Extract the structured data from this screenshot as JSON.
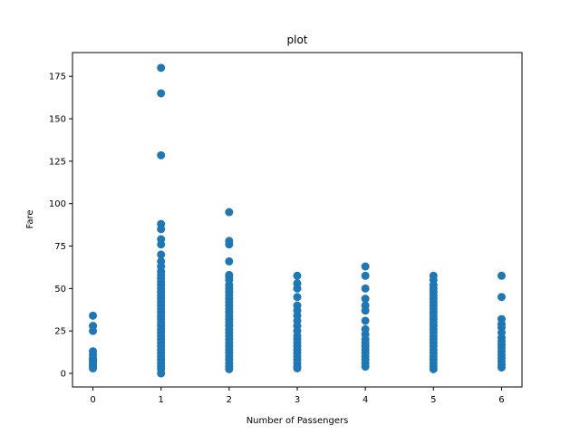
{
  "chart_data": {
    "type": "scatter",
    "title": "plot",
    "xlabel": "Number of Passengers",
    "ylabel": "Fare",
    "xlim": [
      -0.3,
      6.3
    ],
    "ylim": [
      -8,
      189
    ],
    "xticks": [
      0,
      1,
      2,
      3,
      4,
      5,
      6
    ],
    "yticks": [
      0,
      25,
      50,
      75,
      100,
      125,
      150,
      175
    ],
    "grid": false,
    "marker_color": "#1f77b4",
    "series": [
      {
        "points": [
          {
            "x": 0,
            "y": 34
          },
          {
            "x": 0,
            "y": 28
          },
          {
            "x": 0,
            "y": 25
          },
          {
            "x": 0,
            "y": 13
          },
          {
            "x": 0,
            "y": 11
          },
          {
            "x": 0,
            "y": 9
          },
          {
            "x": 0,
            "y": 8
          },
          {
            "x": 0,
            "y": 7
          },
          {
            "x": 0,
            "y": 6
          },
          {
            "x": 0,
            "y": 5
          },
          {
            "x": 0,
            "y": 4
          },
          {
            "x": 0,
            "y": 3
          },
          {
            "x": 1,
            "y": 180
          },
          {
            "x": 1,
            "y": 165
          },
          {
            "x": 1,
            "y": 128.5
          },
          {
            "x": 1,
            "y": 88
          },
          {
            "x": 1,
            "y": 85
          },
          {
            "x": 1,
            "y": 79
          },
          {
            "x": 1,
            "y": 76
          },
          {
            "x": 1,
            "y": 70
          },
          {
            "x": 1,
            "y": 66
          },
          {
            "x": 1,
            "y": 63
          },
          {
            "x": 1,
            "y": 60
          },
          {
            "x": 1,
            "y": 58
          },
          {
            "x": 1,
            "y": 56
          },
          {
            "x": 1,
            "y": 54
          },
          {
            "x": 1,
            "y": 52
          },
          {
            "x": 1,
            "y": 50
          },
          {
            "x": 1,
            "y": 48
          },
          {
            "x": 1,
            "y": 46
          },
          {
            "x": 1,
            "y": 44
          },
          {
            "x": 1,
            "y": 42
          },
          {
            "x": 1,
            "y": 40
          },
          {
            "x": 1,
            "y": 38
          },
          {
            "x": 1,
            "y": 36
          },
          {
            "x": 1,
            "y": 34
          },
          {
            "x": 1,
            "y": 32
          },
          {
            "x": 1,
            "y": 30
          },
          {
            "x": 1,
            "y": 28
          },
          {
            "x": 1,
            "y": 26
          },
          {
            "x": 1,
            "y": 24
          },
          {
            "x": 1,
            "y": 22
          },
          {
            "x": 1,
            "y": 20
          },
          {
            "x": 1,
            "y": 18
          },
          {
            "x": 1,
            "y": 16
          },
          {
            "x": 1,
            "y": 14
          },
          {
            "x": 1,
            "y": 12
          },
          {
            "x": 1,
            "y": 10
          },
          {
            "x": 1,
            "y": 8
          },
          {
            "x": 1,
            "y": 6
          },
          {
            "x": 1,
            "y": 4
          },
          {
            "x": 1,
            "y": 2.5
          },
          {
            "x": 1,
            "y": 0
          },
          {
            "x": 2,
            "y": 95
          },
          {
            "x": 2,
            "y": 78
          },
          {
            "x": 2,
            "y": 76
          },
          {
            "x": 2,
            "y": 66
          },
          {
            "x": 2,
            "y": 58
          },
          {
            "x": 2,
            "y": 57
          },
          {
            "x": 2,
            "y": 55
          },
          {
            "x": 2,
            "y": 52
          },
          {
            "x": 2,
            "y": 50
          },
          {
            "x": 2,
            "y": 48
          },
          {
            "x": 2,
            "y": 46
          },
          {
            "x": 2,
            "y": 44
          },
          {
            "x": 2,
            "y": 42
          },
          {
            "x": 2,
            "y": 40
          },
          {
            "x": 2,
            "y": 38
          },
          {
            "x": 2,
            "y": 36
          },
          {
            "x": 2,
            "y": 34
          },
          {
            "x": 2,
            "y": 32
          },
          {
            "x": 2,
            "y": 30
          },
          {
            "x": 2,
            "y": 28
          },
          {
            "x": 2,
            "y": 26
          },
          {
            "x": 2,
            "y": 24
          },
          {
            "x": 2,
            "y": 22
          },
          {
            "x": 2,
            "y": 20
          },
          {
            "x": 2,
            "y": 18
          },
          {
            "x": 2,
            "y": 16
          },
          {
            "x": 2,
            "y": 14
          },
          {
            "x": 2,
            "y": 12
          },
          {
            "x": 2,
            "y": 10
          },
          {
            "x": 2,
            "y": 8
          },
          {
            "x": 2,
            "y": 6
          },
          {
            "x": 2,
            "y": 4
          },
          {
            "x": 2,
            "y": 2.5
          },
          {
            "x": 3,
            "y": 57.5
          },
          {
            "x": 3,
            "y": 53
          },
          {
            "x": 3,
            "y": 50
          },
          {
            "x": 3,
            "y": 45
          },
          {
            "x": 3,
            "y": 40
          },
          {
            "x": 3,
            "y": 37
          },
          {
            "x": 3,
            "y": 34
          },
          {
            "x": 3,
            "y": 31
          },
          {
            "x": 3,
            "y": 28
          },
          {
            "x": 3,
            "y": 25
          },
          {
            "x": 3,
            "y": 22
          },
          {
            "x": 3,
            "y": 20
          },
          {
            "x": 3,
            "y": 18
          },
          {
            "x": 3,
            "y": 16
          },
          {
            "x": 3,
            "y": 14
          },
          {
            "x": 3,
            "y": 12
          },
          {
            "x": 3,
            "y": 10
          },
          {
            "x": 3,
            "y": 8
          },
          {
            "x": 3,
            "y": 6
          },
          {
            "x": 3,
            "y": 4
          },
          {
            "x": 3,
            "y": 3
          },
          {
            "x": 4,
            "y": 63
          },
          {
            "x": 4,
            "y": 57.5
          },
          {
            "x": 4,
            "y": 50
          },
          {
            "x": 4,
            "y": 44
          },
          {
            "x": 4,
            "y": 40
          },
          {
            "x": 4,
            "y": 37
          },
          {
            "x": 4,
            "y": 31
          },
          {
            "x": 4,
            "y": 26
          },
          {
            "x": 4,
            "y": 23
          },
          {
            "x": 4,
            "y": 20
          },
          {
            "x": 4,
            "y": 18
          },
          {
            "x": 4,
            "y": 16
          },
          {
            "x": 4,
            "y": 14
          },
          {
            "x": 4,
            "y": 12
          },
          {
            "x": 4,
            "y": 10
          },
          {
            "x": 4,
            "y": 8
          },
          {
            "x": 4,
            "y": 6
          },
          {
            "x": 4,
            "y": 4
          },
          {
            "x": 5,
            "y": 57.5
          },
          {
            "x": 5,
            "y": 55
          },
          {
            "x": 5,
            "y": 52
          },
          {
            "x": 5,
            "y": 50
          },
          {
            "x": 5,
            "y": 48
          },
          {
            "x": 5,
            "y": 46
          },
          {
            "x": 5,
            "y": 44
          },
          {
            "x": 5,
            "y": 42
          },
          {
            "x": 5,
            "y": 40
          },
          {
            "x": 5,
            "y": 38
          },
          {
            "x": 5,
            "y": 36
          },
          {
            "x": 5,
            "y": 34
          },
          {
            "x": 5,
            "y": 32
          },
          {
            "x": 5,
            "y": 30
          },
          {
            "x": 5,
            "y": 28
          },
          {
            "x": 5,
            "y": 26
          },
          {
            "x": 5,
            "y": 24
          },
          {
            "x": 5,
            "y": 22
          },
          {
            "x": 5,
            "y": 20
          },
          {
            "x": 5,
            "y": 18
          },
          {
            "x": 5,
            "y": 16
          },
          {
            "x": 5,
            "y": 14
          },
          {
            "x": 5,
            "y": 12
          },
          {
            "x": 5,
            "y": 10
          },
          {
            "x": 5,
            "y": 8
          },
          {
            "x": 5,
            "y": 6
          },
          {
            "x": 5,
            "y": 4
          },
          {
            "x": 5,
            "y": 2.5
          },
          {
            "x": 6,
            "y": 57.5
          },
          {
            "x": 6,
            "y": 45
          },
          {
            "x": 6,
            "y": 32
          },
          {
            "x": 6,
            "y": 29
          },
          {
            "x": 6,
            "y": 27
          },
          {
            "x": 6,
            "y": 24
          },
          {
            "x": 6,
            "y": 21
          },
          {
            "x": 6,
            "y": 19
          },
          {
            "x": 6,
            "y": 17
          },
          {
            "x": 6,
            "y": 15
          },
          {
            "x": 6,
            "y": 13
          },
          {
            "x": 6,
            "y": 11
          },
          {
            "x": 6,
            "y": 9
          },
          {
            "x": 6,
            "y": 7
          },
          {
            "x": 6,
            "y": 5
          },
          {
            "x": 6,
            "y": 3.5
          }
        ]
      }
    ]
  }
}
